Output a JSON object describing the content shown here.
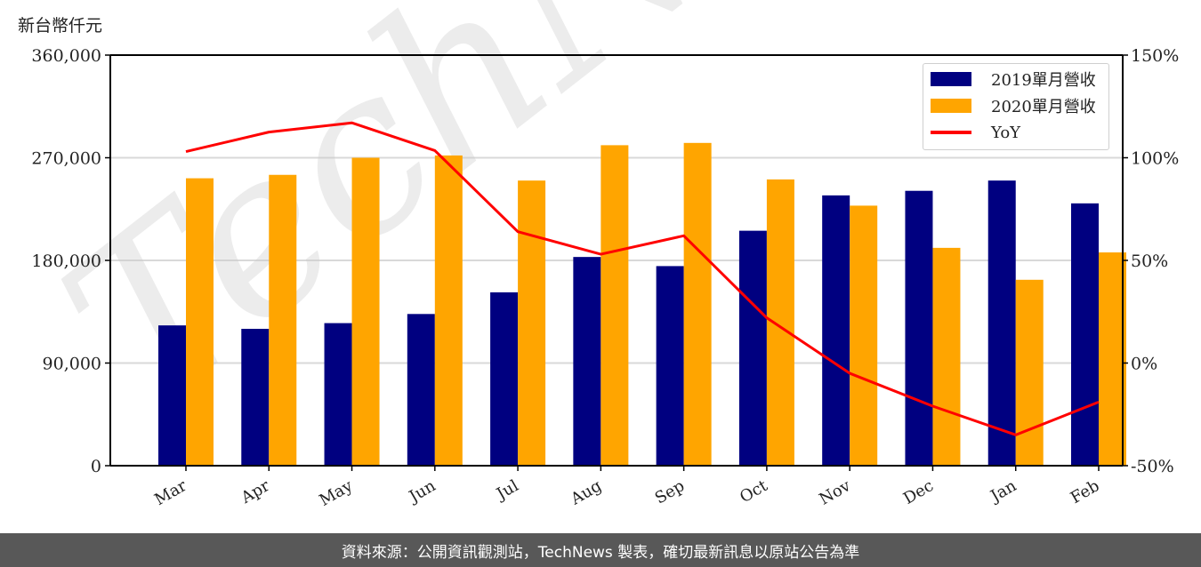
{
  "unit_label": "新台幣仟元",
  "footer": "資料來源：公開資訊觀測站，TechNews 製表，確切最新訊息以原站公告為準",
  "watermark": "TechNews",
  "colors": {
    "series_2019": "#000080",
    "series_2020": "#FFA500",
    "yoy": "#FF0000",
    "grid": "#d9d9d9",
    "footer_bg": "#585858"
  },
  "legend": [
    {
      "label": "2019單月營收",
      "type": "bar",
      "color": "#000080"
    },
    {
      "label": "2020單月營收",
      "type": "bar",
      "color": "#FFA500"
    },
    {
      "label": "YoY",
      "type": "line",
      "color": "#FF0000"
    }
  ],
  "chart_data": {
    "type": "bar",
    "title": "",
    "xlabel": "",
    "ylabel": "新台幣仟元",
    "y2label": "",
    "categories": [
      "Mar",
      "Apr",
      "May",
      "Jun",
      "Jul",
      "Aug",
      "Sep",
      "Oct",
      "Nov",
      "Dec",
      "Jan",
      "Feb"
    ],
    "series": [
      {
        "name": "2019單月營收",
        "type": "bar",
        "axis": "left",
        "values": [
          123000,
          120000,
          125000,
          133000,
          152000,
          183000,
          175000,
          206000,
          237000,
          241000,
          250000,
          230000
        ]
      },
      {
        "name": "2020單月營收",
        "type": "bar",
        "axis": "right-of-pair",
        "values": [
          252000,
          255000,
          270000,
          272000,
          250000,
          281000,
          283000,
          251000,
          228000,
          191000,
          163000,
          187000
        ]
      },
      {
        "name": "YoY",
        "type": "line",
        "axis": "right",
        "unit": "%",
        "values": [
          103,
          112.5,
          117,
          103.5,
          64,
          53,
          62,
          22,
          -5,
          -21,
          -35,
          -19
        ]
      }
    ],
    "ylim": [
      0,
      360000
    ],
    "y_ticks": [
      "0",
      "90,000",
      "180,000",
      "270,000",
      "360,000"
    ],
    "y_tick_values": [
      0,
      90000,
      180000,
      270000,
      360000
    ],
    "y2lim": [
      -50,
      150
    ],
    "y2_ticks": [
      "-50%",
      "0%",
      "50%",
      "100%",
      "150%"
    ],
    "y2_tick_values": [
      -50,
      0,
      50,
      100,
      150
    ],
    "grid": "horizontal",
    "legend_position": "upper right"
  }
}
